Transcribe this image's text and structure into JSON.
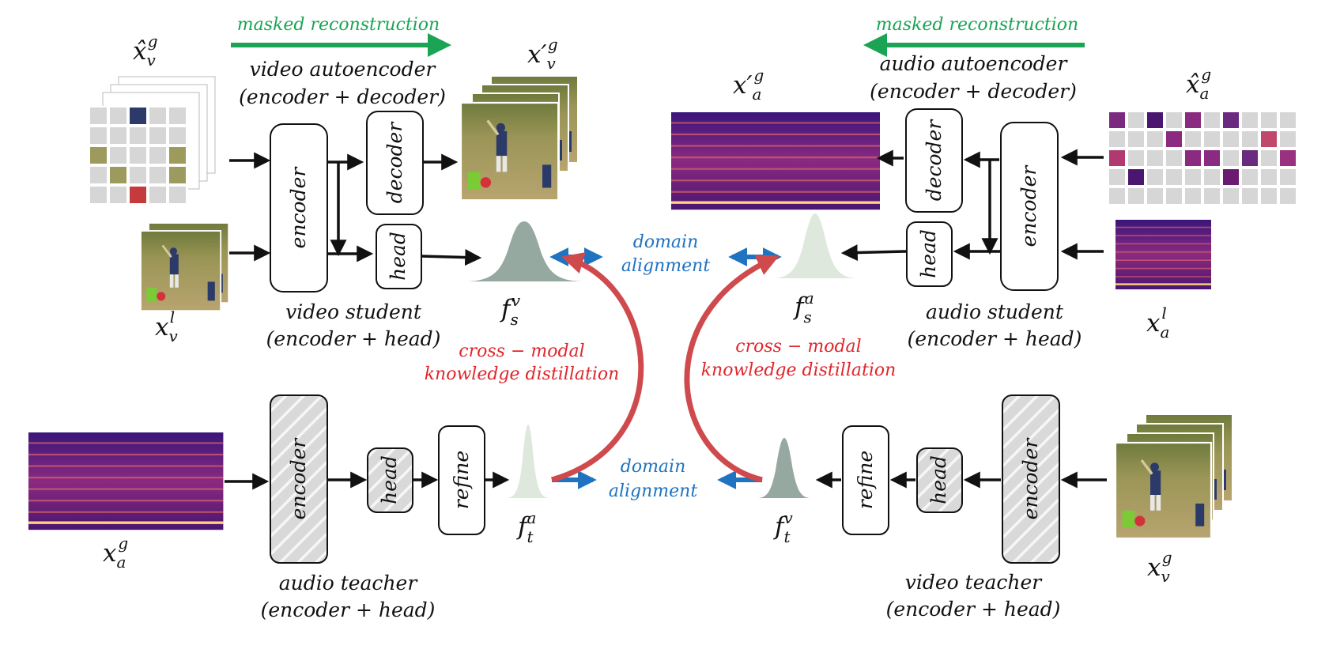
{
  "colors": {
    "green": "#1aa454",
    "blue": "#1f73c1",
    "red": "#e0262c",
    "arc": "#cf4a4d",
    "gauss_dark": "#96a9a1",
    "gauss_light": "#dfe8dc",
    "mask_grey": "#d6d6d6",
    "field": "#9c9a5c",
    "spectrogram_dark": "#2a0f64",
    "spectrogram_mid": "#8c2a7f",
    "spectrogram_hot": "#f7a15a"
  },
  "labels": {
    "masked_reconstruction": "masked reconstruction",
    "video_autoencoder": "video autoencoder",
    "audio_autoencoder": "audio autoencoder",
    "encoder_plus_decoder": "(encoder + decoder)",
    "video_student": "video student",
    "audio_student": "audio student",
    "audio_teacher": "audio teacher",
    "video_teacher": "video teacher",
    "encoder_plus_head": "(encoder + head)",
    "domain": "domain",
    "alignment": "alignment",
    "cross_modal": "cross − modal",
    "knowledge_distillation": "knowledge distillation"
  },
  "boxes": {
    "encoder": "encoder",
    "decoder": "decoder",
    "head": "head",
    "refine": "refine"
  },
  "math": {
    "x": "x",
    "x_prime": "x′",
    "x_hat": "x̂",
    "f": "f",
    "sub_v": "v",
    "sub_a": "a",
    "sub_s": "s",
    "sub_t": "t",
    "sup_g": "g",
    "sup_l": "l"
  }
}
